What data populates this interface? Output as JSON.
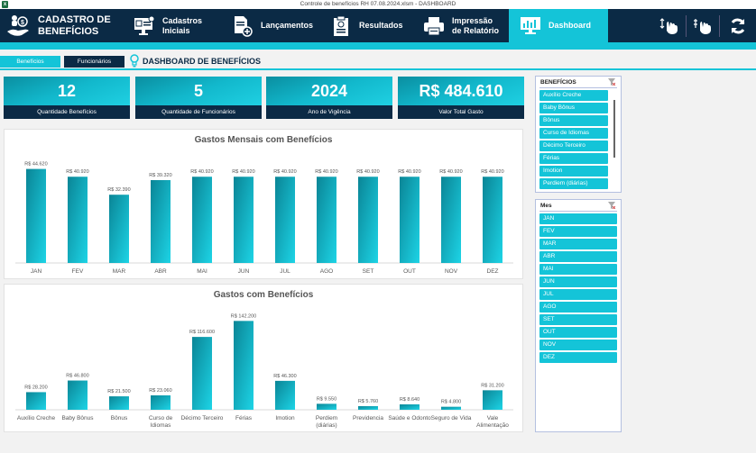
{
  "window": {
    "title": "Controle de benefícios RH 07.08.2024.xlsm - DASHBOARD",
    "app_icon": "excel-icon"
  },
  "nav": {
    "brand": {
      "line1": "CADASTRO DE",
      "line2": "BENEFÍCIOS",
      "icon": "hand-money-icon"
    },
    "items": [
      {
        "line1": "Cadastros",
        "line2": "Iniciais",
        "icon": "monitor-id-icon"
      },
      {
        "line1": "Lançamentos",
        "line2": "",
        "icon": "document-add-icon"
      },
      {
        "line1": "Resultados",
        "line2": "",
        "icon": "clipboard-icon"
      },
      {
        "line1": "Impressão",
        "line2": "de Relatório",
        "icon": "printer-icon"
      },
      {
        "line1": "Dashboard",
        "line2": "",
        "icon": "dashboard-monitor-icon",
        "active": true
      }
    ],
    "tools": [
      "sort-hand-icon",
      "filter-hand-icon",
      "refresh-icon"
    ]
  },
  "subbar": {
    "tabs": [
      {
        "label": "Benefícios",
        "active": true
      },
      {
        "label": "Funcionários",
        "active": false
      }
    ],
    "title": "DASHBOARD DE BENEFÍCIOS"
  },
  "kpis": [
    {
      "value": "12",
      "label": "Quantidade Benefícios"
    },
    {
      "value": "5",
      "label": "Quantidade de Funcionários"
    },
    {
      "value": "2024",
      "label": "Ano de Vigência"
    },
    {
      "value": "R$ 484.610",
      "label": "Valor Total Gasto"
    }
  ],
  "chart_data": [
    {
      "type": "bar",
      "title": "Gastos Mensais com Benefícios",
      "categories": [
        "JAN",
        "FEV",
        "MAR",
        "ABR",
        "MAI",
        "JUN",
        "JUL",
        "AGO",
        "SET",
        "OUT",
        "NOV",
        "DEZ"
      ],
      "values": [
        44620,
        40920,
        32390,
        39320,
        40920,
        40920,
        40920,
        40920,
        40920,
        40920,
        40920,
        40920
      ],
      "data_labels": [
        "R$ 44.620",
        "R$ 40.920",
        "R$ 32.390",
        "R$ 39.320",
        "R$ 40.920",
        "R$ 40.920",
        "R$ 40.920",
        "R$ 40.920",
        "R$ 40.920",
        "R$ 40.920",
        "R$ 40.920",
        "R$ 40.920"
      ],
      "xlabel": "",
      "ylabel": "",
      "ylim": [
        0,
        50000
      ],
      "grid": false
    },
    {
      "type": "bar",
      "title": "Gastos com Benefícios",
      "categories": [
        "Auxílio Creche",
        "Baby Bônus",
        "Bônus",
        "Curso de Idiomas",
        "Décimo Terceiro",
        "Férias",
        "Imotion",
        "Perdiem (diárias)",
        "Previdencia",
        "Saúde e Odonto",
        "Seguro de Vida",
        "Vale Alimentação"
      ],
      "values": [
        28200,
        46800,
        21500,
        23060,
        116600,
        142200,
        46300,
        9550,
        5760,
        8640,
        4800,
        31200
      ],
      "data_labels": [
        "R$ 28.200",
        "R$ 46.800",
        "R$ 21.500",
        "R$ 23.060",
        "R$ 116.600",
        "R$ 142.200",
        "R$ 46.300",
        "R$ 9.550",
        "R$ 5.760",
        "R$ 8.640",
        "R$ 4.800",
        "R$ 31.200"
      ],
      "xlabel": "",
      "ylabel": "",
      "ylim": [
        0,
        160000
      ],
      "grid": false
    }
  ],
  "slicers": {
    "beneficios": {
      "header": "BENEFÍCIOS",
      "items": [
        "Auxílio Creche",
        "Baby Bônus",
        "Bônus",
        "Curso de Idiomas",
        "Décimo Terceiro",
        "Férias",
        "Imotion",
        "Perdiem (diárias)"
      ]
    },
    "mes": {
      "header": "Mes",
      "items": [
        "JAN",
        "FEV",
        "MAR",
        "ABR",
        "MAI",
        "JUN",
        "JUL",
        "AGO",
        "SET",
        "OUT",
        "NOV",
        "DEZ"
      ]
    }
  },
  "colors": {
    "navy": "#0b2a45",
    "accent": "#14c4d8",
    "bar_dark": "#0a8596",
    "bar_light": "#1dd4e6"
  }
}
